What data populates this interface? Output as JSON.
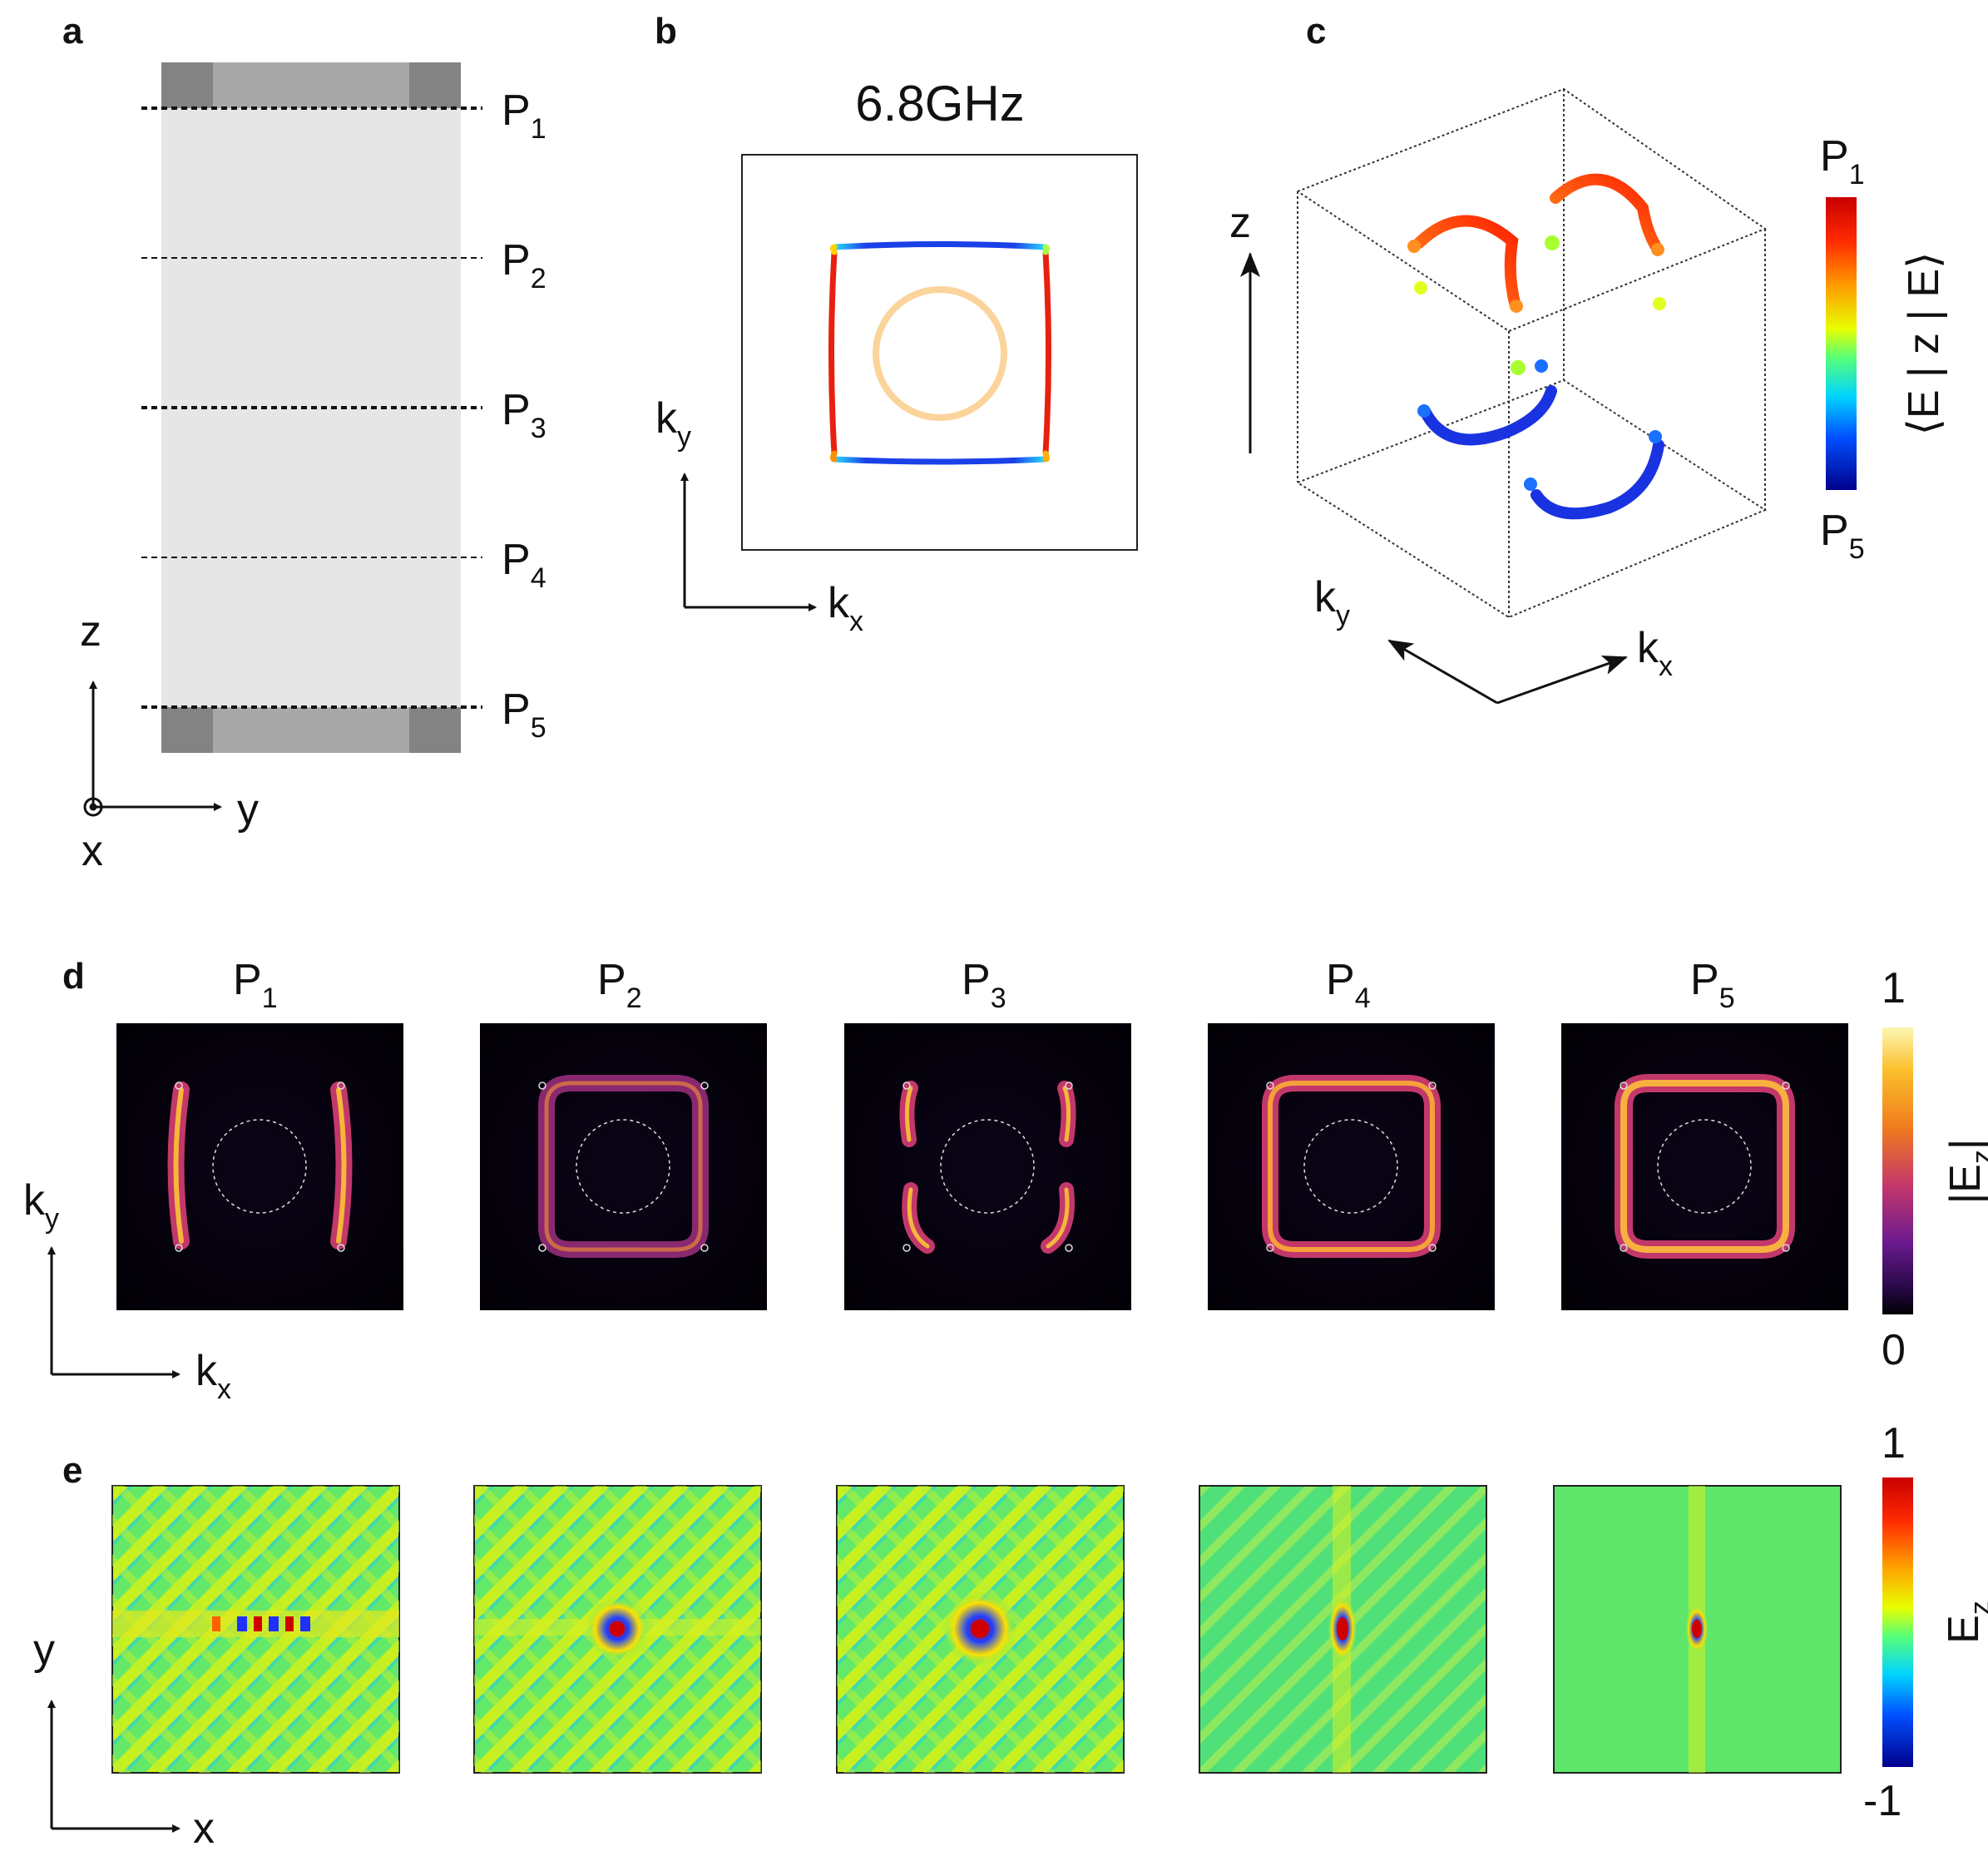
{
  "panels": {
    "a": {
      "label": "a",
      "planes": [
        {
          "name": "P",
          "sub": "1"
        },
        {
          "name": "P",
          "sub": "2"
        },
        {
          "name": "P",
          "sub": "3"
        },
        {
          "name": "P",
          "sub": "4"
        },
        {
          "name": "P",
          "sub": "5"
        }
      ],
      "axes": {
        "z": "z",
        "y": "y",
        "x": "x"
      }
    },
    "b": {
      "label": "b",
      "title": "6.8GHz",
      "axes": {
        "ky_main": "k",
        "ky_sub": "y",
        "kx_main": "k",
        "kx_sub": "x"
      }
    },
    "c": {
      "label": "c",
      "axes": {
        "z": "z",
        "ky_main": "k",
        "ky_sub": "y",
        "kx_main": "k",
        "kx_sub": "x"
      },
      "colorbar": {
        "top_main": "P",
        "top_sub": "1",
        "bottom_main": "P",
        "bottom_sub": "5",
        "title": "⟨E | z | E⟩"
      }
    },
    "d": {
      "label": "d",
      "columns": [
        {
          "name": "P",
          "sub": "1"
        },
        {
          "name": "P",
          "sub": "2"
        },
        {
          "name": "P",
          "sub": "3"
        },
        {
          "name": "P",
          "sub": "4"
        },
        {
          "name": "P",
          "sub": "5"
        }
      ],
      "axes": {
        "ky_main": "k",
        "ky_sub": "y",
        "kx_main": "k",
        "kx_sub": "x"
      },
      "colorbar": {
        "max": "1",
        "min": "0",
        "title_main": "|E",
        "title_sub": "z",
        "title_end": "|"
      }
    },
    "e": {
      "label": "e",
      "axes": {
        "y": "y",
        "x": "x"
      },
      "colorbar": {
        "max": "1",
        "min": "-1",
        "title_main": "E",
        "title_sub": "z"
      }
    }
  },
  "colors": {
    "slab_light": "#e6e6e6",
    "slab_mid": "#a8a8a8",
    "slab_dark": "#838383",
    "pink_ring": "#fbd49b"
  }
}
